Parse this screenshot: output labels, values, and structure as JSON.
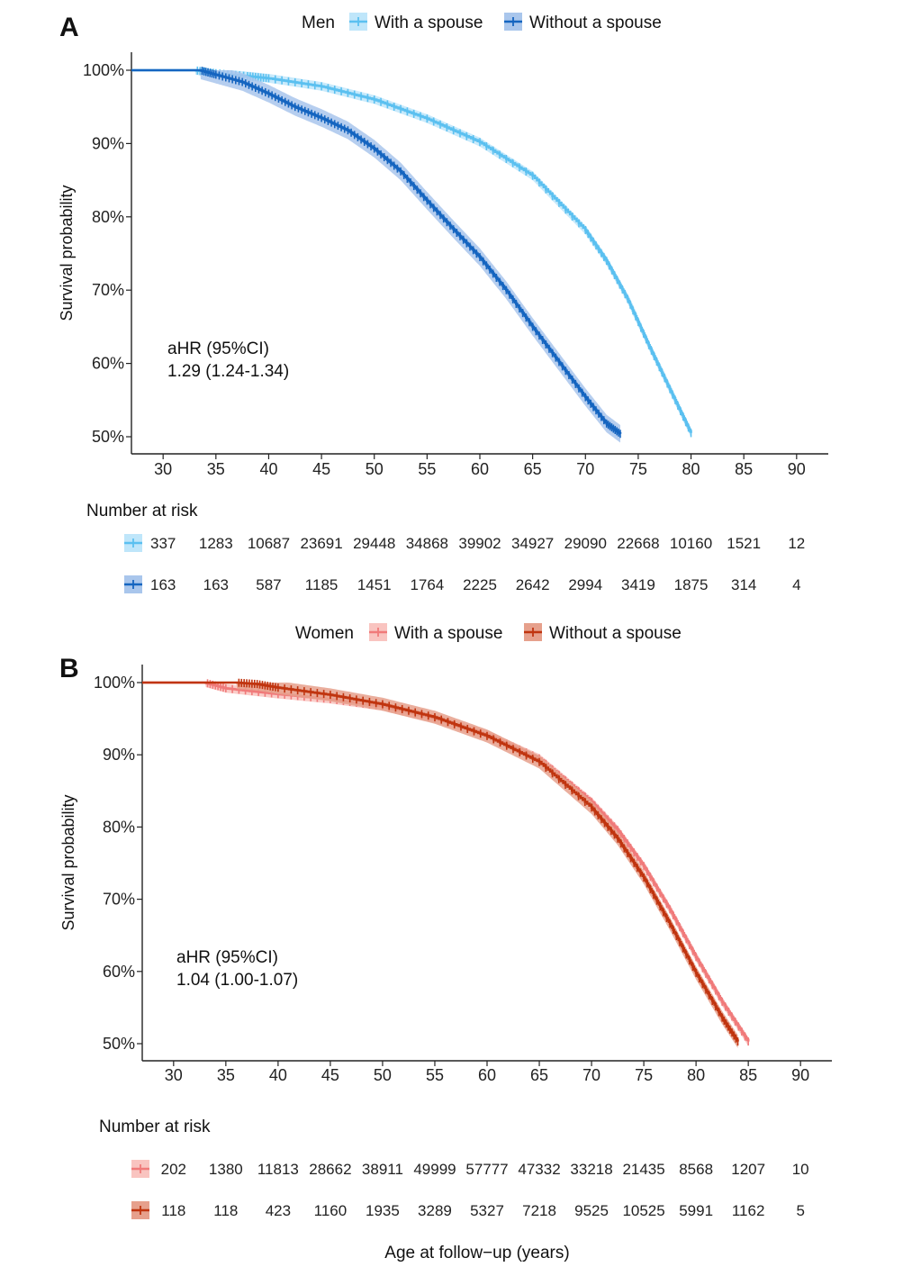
{
  "x_axis_label": "Age at follow−up (years)",
  "chart_data": [
    {
      "panel": "A",
      "type": "line",
      "subtype": "kaplan-meier",
      "legend_title": "Men",
      "ylabel": "Survival probability",
      "xlabel": "Age at follow−up (years)",
      "xlim": [
        27,
        93
      ],
      "ylim": [
        50,
        100
      ],
      "x_ticks": [
        30,
        35,
        40,
        45,
        50,
        55,
        60,
        65,
        70,
        75,
        80,
        85,
        90
      ],
      "y_ticks": [
        100,
        90,
        80,
        70,
        60,
        50
      ],
      "y_tick_labels": [
        "100%",
        "90%",
        "80%",
        "70%",
        "60%",
        "50%"
      ],
      "annotation": [
        "aHR (95%CI)",
        "1.29 (1.24-1.34)"
      ],
      "series": [
        {
          "name": "With a spouse",
          "color": "#5bc0f0",
          "band_color": "#bfe6fa",
          "x": [
            27,
            33,
            35,
            38,
            40,
            45,
            50,
            55,
            60,
            65,
            70,
            72,
            74,
            76,
            78,
            80
          ],
          "y": [
            100,
            100,
            99.6,
            99.2,
            98.9,
            97.8,
            96.0,
            93.4,
            90.2,
            85.6,
            78.2,
            74.0,
            68.8,
            62.5,
            56.5,
            50.5
          ],
          "band": 0.6
        },
        {
          "name": "Without a spouse",
          "color": "#1565c0",
          "band_color": "#a9c6ec",
          "x": [
            27,
            33.5,
            35,
            37.5,
            40,
            42.5,
            45,
            47.5,
            50,
            52.5,
            55,
            57.5,
            60,
            62.5,
            65,
            67.5,
            70,
            72,
            73.3
          ],
          "y": [
            100,
            100,
            99.4,
            98.4,
            96.8,
            95.0,
            93.5,
            91.8,
            89.3,
            86.2,
            82.2,
            78.3,
            74.5,
            70.0,
            65.0,
            60.2,
            55.4,
            51.8,
            50.4
          ],
          "band": 1.2
        }
      ],
      "risk_table": {
        "title": "Number at risk",
        "rows": [
          {
            "series": "With a spouse",
            "values": [
              "337",
              "1283",
              "10687",
              "23691",
              "29448",
              "34868",
              "39902",
              "34927",
              "29090",
              "22668",
              "10160",
              "1521",
              "12"
            ]
          },
          {
            "series": "Without a spouse",
            "values": [
              "163",
              "163",
              "587",
              "1185",
              "1451",
              "1764",
              "2225",
              "2642",
              "2994",
              "3419",
              "1875",
              "314",
              "4"
            ]
          }
        ]
      }
    },
    {
      "panel": "B",
      "type": "line",
      "subtype": "kaplan-meier",
      "legend_title": "Women",
      "ylabel": "Survival probability",
      "xlabel": "Age at follow−up (years)",
      "xlim": [
        27,
        93
      ],
      "ylim": [
        50,
        100
      ],
      "x_ticks": [
        30,
        35,
        40,
        45,
        50,
        55,
        60,
        65,
        70,
        75,
        80,
        85,
        90
      ],
      "y_ticks": [
        100,
        90,
        80,
        70,
        60,
        50
      ],
      "y_tick_labels": [
        "100%",
        "90%",
        "80%",
        "70%",
        "60%",
        "50%"
      ],
      "annotation": [
        "aHR (95%CI)",
        "1.04 (1.00-1.07)"
      ],
      "series": [
        {
          "name": "With a spouse",
          "color": "#f07a7a",
          "band_color": "#f9c4c0",
          "x": [
            27,
            33,
            35,
            40,
            45,
            50,
            55,
            60,
            65,
            70,
            72.5,
            75,
            77.5,
            80,
            82.5,
            85
          ],
          "y": [
            100,
            100,
            99.2,
            98.4,
            97.7,
            96.7,
            95.0,
            92.8,
            89.5,
            83.5,
            79.6,
            74.6,
            68.6,
            62.0,
            55.8,
            50.3
          ],
          "band": 0.6
        },
        {
          "name": "Without a spouse",
          "color": "#c0340f",
          "band_color": "#e6a08c",
          "x": [
            27,
            36,
            38,
            40,
            45,
            50,
            55,
            60,
            65,
            70,
            72.5,
            75,
            77.5,
            80,
            82.5,
            84
          ],
          "y": [
            100,
            100,
            99.8,
            99.3,
            98.3,
            97.0,
            95.2,
            92.6,
            89.0,
            82.7,
            78.4,
            73.0,
            66.6,
            59.8,
            53.6,
            50.3
          ],
          "band": 0.9
        }
      ],
      "risk_table": {
        "title": "Number at risk",
        "rows": [
          {
            "series": "With a spouse",
            "values": [
              "202",
              "1380",
              "11813",
              "28662",
              "38911",
              "49999",
              "57777",
              "47332",
              "33218",
              "21435",
              "8568",
              "1207",
              "10"
            ]
          },
          {
            "series": "Without a spouse",
            "values": [
              "118",
              "118",
              "423",
              "1160",
              "1935",
              "3289",
              "5327",
              "7218",
              "9525",
              "10525",
              "5991",
              "1162",
              "5"
            ]
          }
        ]
      }
    }
  ]
}
